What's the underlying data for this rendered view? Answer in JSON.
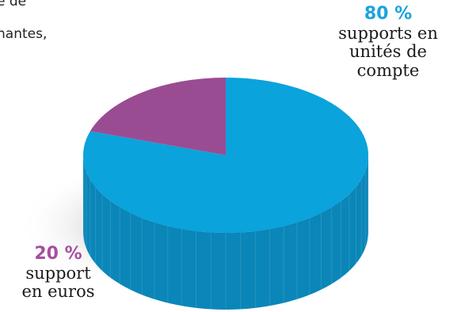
{
  "page_text": {
    "line1": "e de",
    "line2": "nantes,"
  },
  "chart_data": {
    "type": "pie",
    "style": "3d",
    "slices": [
      {
        "label_pct": "80 %",
        "label_lines": [
          "supports en",
          "unités de",
          "compte"
        ],
        "value": 80,
        "color": "#0aa3dc",
        "side_color": "#0a86b8",
        "label_color": "#1aa3dd"
      },
      {
        "label_pct": "20 %",
        "label_lines": [
          "support",
          "en euros"
        ],
        "value": 20,
        "color": "#9a4c93",
        "side_color": "#6d2f66",
        "label_color": "#a74e9f"
      }
    ]
  }
}
